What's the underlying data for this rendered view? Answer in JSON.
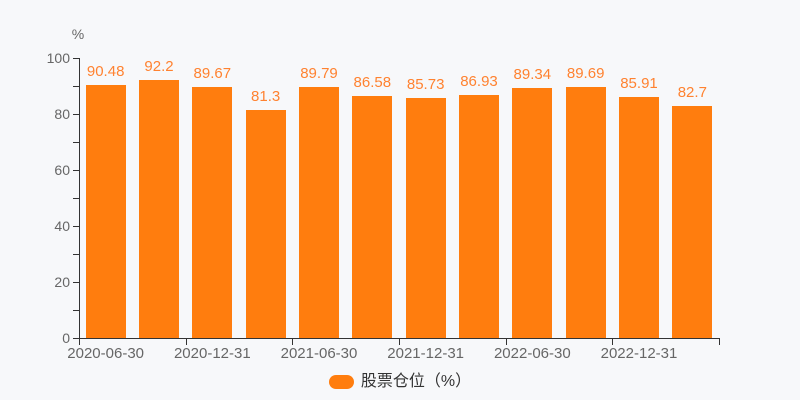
{
  "colors": {
    "background": "#f7f8fa",
    "bar": "#ff7d0e",
    "value_label": "#ff8230",
    "axis": "#333333",
    "tick_label": "#666666",
    "legend_text": "#333333"
  },
  "chart_data": {
    "type": "bar",
    "title": "",
    "ylabel": "%",
    "xlabel": "",
    "values": [
      90.48,
      92.2,
      89.67,
      81.3,
      89.79,
      86.58,
      85.73,
      86.93,
      89.34,
      89.69,
      85.91,
      82.7
    ],
    "value_labels": [
      "90.48",
      "92.2",
      "89.67",
      "81.3",
      "89.79",
      "86.58",
      "85.73",
      "86.93",
      "89.34",
      "89.69",
      "85.91",
      "82.7"
    ],
    "x_tick_labels": [
      "2020-06-30",
      "2020-12-31",
      "2021-06-30",
      "2021-12-31",
      "2022-06-30",
      "2022-12-31"
    ],
    "x_label_bar_indices": [
      0,
      2,
      4,
      6,
      8,
      10
    ],
    "ylim": [
      0,
      100
    ],
    "y_major_ticks": [
      0,
      20,
      40,
      60,
      80,
      100
    ],
    "y_minor_step": 10,
    "grid": false,
    "legend": [
      "股票仓位（%）"
    ],
    "legend_position": "bottom"
  }
}
